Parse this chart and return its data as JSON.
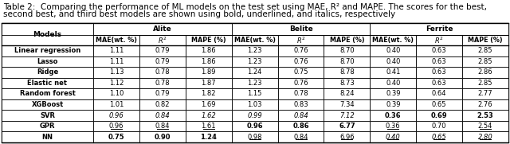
{
  "caption_line1": "Table 2:  Comparing the performance of ML models on the test set using MAE, R² and MAPE. The scores for the best,",
  "caption_line2": "second best, and third best models are shown using bold, underlined, and italics, respectively",
  "col_groups": [
    "Alite",
    "Belite",
    "Ferrite"
  ],
  "col_headers": [
    "MAE(wt. %)",
    "R²",
    "MAPE (%)",
    "MAE(wt. %)",
    "R²",
    "MAPE (%)",
    "MAE(wt. %)",
    "R²",
    "MAPE (%)"
  ],
  "models": [
    "Linear regression",
    "Lasso",
    "Ridge",
    "Elastic net",
    "Random forest",
    "XGBoost",
    "SVR",
    "GPR",
    "NN"
  ],
  "data": [
    [
      "1.11",
      "0.79",
      "1.86",
      "1.23",
      "0.76",
      "8.70",
      "0.40",
      "0.63",
      "2.85"
    ],
    [
      "1.11",
      "0.79",
      "1.86",
      "1.23",
      "0.76",
      "8.70",
      "0.40",
      "0.63",
      "2.85"
    ],
    [
      "1.13",
      "0.78",
      "1.89",
      "1.24",
      "0.75",
      "8.78",
      "0.41",
      "0.63",
      "2.86"
    ],
    [
      "1.12",
      "0.78",
      "1.87",
      "1.23",
      "0.76",
      "8.73",
      "0.40",
      "0.63",
      "2.85"
    ],
    [
      "1.10",
      "0.79",
      "1.82",
      "1.15",
      "0.78",
      "8.24",
      "0.39",
      "0.64",
      "2.77"
    ],
    [
      "1.01",
      "0.82",
      "1.69",
      "1.03",
      "0.83",
      "7.34",
      "0.39",
      "0.65",
      "2.76"
    ],
    [
      "0.96",
      "0.84",
      "1.62",
      "0.99",
      "0.84",
      "7.12",
      "0.36",
      "0.69",
      "2.53"
    ],
    [
      "0.96",
      "0.84",
      "1.61",
      "0.96",
      "0.86",
      "6.77",
      "0.36",
      "0.70",
      "2.54"
    ],
    [
      "0.75",
      "0.90",
      "1.24",
      "0.98",
      "0.84",
      "6.96",
      "0.40",
      "0.65",
      "2.80"
    ]
  ],
  "bold_cells": {
    "SVR": [
      6,
      7,
      8
    ],
    "GPR": [
      3,
      4,
      5
    ],
    "NN": [
      0,
      1,
      2
    ]
  },
  "underline_cells": {
    "GPR": [
      0,
      1,
      2,
      6,
      8
    ],
    "NN": [
      3,
      4,
      5,
      6,
      7,
      8
    ]
  },
  "italic_cells": {
    "SVR": [
      0,
      1,
      2,
      3,
      4,
      5
    ],
    "NN": [
      6,
      7,
      8
    ]
  },
  "model_bold": [
    "Linear regression",
    "Lasso",
    "Ridge",
    "Elastic net",
    "Random forest",
    "XGBoost",
    "SVR",
    "GPR",
    "NN"
  ],
  "bg": "#ffffff"
}
